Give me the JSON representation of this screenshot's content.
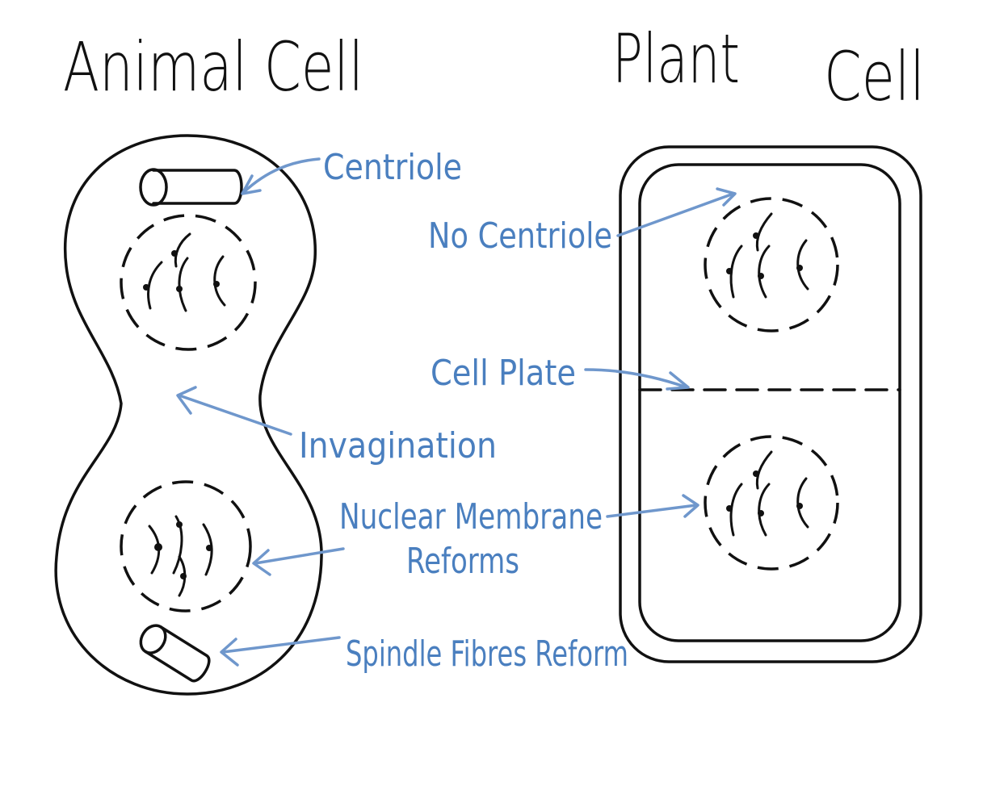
{
  "titles": {
    "animal": "Animal Cell",
    "plant": "Plant",
    "cell": "Cell"
  },
  "labels": {
    "centriole": "Centriole",
    "no_centriole": "No Centriole",
    "cell_plate": "Cell Plate",
    "invagination": "Invagination",
    "nuclear_membrane_line1": "Nuclear Membrane",
    "nuclear_membrane_line2": "Reforms",
    "spindle_fibres": "Spindle Fibres Reform"
  },
  "colors": {
    "ink": "#111111",
    "label": "#4a7fbf",
    "arrow": "#6f97cc"
  }
}
